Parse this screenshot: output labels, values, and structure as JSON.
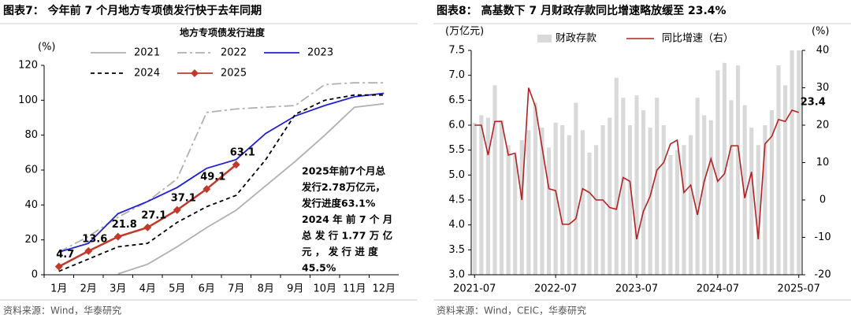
{
  "chart_data": [
    {
      "type": "line",
      "title": "图表7：  今年前 7 个月地方专项债发行快于去年同期",
      "subtitle": "地方专项债发行进度",
      "ylabel": "(%)",
      "source": "资料来源：Wind，华泰研究",
      "categories": [
        "1月",
        "2月",
        "3月",
        "4月",
        "5月",
        "6月",
        "7月",
        "8月",
        "9月",
        "10月",
        "11月",
        "12月"
      ],
      "ylim": [
        0,
        120
      ],
      "yticks": [
        0,
        20,
        40,
        60,
        80,
        100,
        120
      ],
      "series": [
        {
          "name": "2021",
          "color": "#b0b0b0",
          "style": "solid",
          "values": [
            null,
            null,
            0.5,
            6,
            16,
            27,
            37,
            51,
            65,
            80,
            96,
            98
          ]
        },
        {
          "name": "2022",
          "color": "#b0b0b0",
          "style": "dashdot",
          "values": [
            13,
            22,
            33,
            42,
            55,
            93,
            95,
            96,
            97,
            109,
            110,
            110
          ]
        },
        {
          "name": "2023",
          "color": "#1f1fd6",
          "style": "solid",
          "values": [
            13,
            18,
            35,
            42,
            50,
            61,
            66,
            81,
            91,
            97,
            102,
            104
          ]
        },
        {
          "name": "2024",
          "color": "#000000",
          "style": "dashed",
          "values": [
            2,
            9,
            16,
            18,
            30,
            39,
            45.5,
            66,
            92,
            100,
            103,
            103
          ]
        },
        {
          "name": "2025",
          "color": "#c0392b",
          "style": "solid",
          "marker": "diamond",
          "labels": true,
          "values": [
            4.7,
            13.6,
            21.8,
            27.1,
            37.1,
            49.1,
            63.1,
            null,
            null,
            null,
            null,
            null
          ]
        }
      ],
      "annotations": [
        {
          "color": "#c0392b",
          "lines": [
            "2025年前7个月总",
            "发行2.78万亿元，",
            "发行进度63.1%"
          ]
        },
        {
          "color": "#000000",
          "lines": [
            "2024 年 前 7 个 月",
            "总 发 行 1.77 万 亿",
            "元 ， 发 行 进 度",
            "45.5%"
          ]
        }
      ]
    },
    {
      "type": "combo",
      "title": "图表8：  高基数下 7 月财政存款同比增速略放缓至 23.4%",
      "ylabel": "(万亿元)",
      "y2label": "(%)",
      "source": "资料来源：Wind，CEIC，华泰研究",
      "categories": [
        "2021-07",
        null,
        null,
        null,
        null,
        null,
        null,
        null,
        null,
        null,
        null,
        null,
        "2022-07",
        null,
        null,
        null,
        null,
        null,
        null,
        null,
        null,
        null,
        null,
        null,
        "2023-07",
        null,
        null,
        null,
        null,
        null,
        null,
        null,
        null,
        null,
        null,
        null,
        "2024-07",
        null,
        null,
        null,
        null,
        null,
        null,
        null,
        null,
        null,
        null,
        null,
        "2025-07"
      ],
      "ylim": [
        3.0,
        7.5
      ],
      "yticks": [
        {
          "value": 3,
          "label": "3.0"
        },
        {
          "value": 3.5,
          "label": "3.5"
        },
        {
          "value": 4,
          "label": "4.0"
        },
        {
          "value": 4.5,
          "label": "4.5"
        },
        {
          "value": 5,
          "label": "5.0"
        },
        {
          "value": 5.5,
          "label": "5.5"
        },
        {
          "value": 6,
          "label": "6.0"
        },
        {
          "value": 6.5,
          "label": "6.5"
        },
        {
          "value": 7,
          "label": "7.0"
        },
        {
          "value": 7.5,
          "label": "7.5"
        }
      ],
      "y2lim": [
        -20,
        40
      ],
      "y2ticks": [
        -20,
        -10,
        0,
        10,
        20,
        30,
        40
      ],
      "series": [
        {
          "name": "财政存款",
          "type": "bar",
          "color": "#d9d9d9",
          "values": [
            6.05,
            6.2,
            6.15,
            6.8,
            6.1,
            5.6,
            5.4,
            5.7,
            5.9,
            6.45,
            5.95,
            5.55,
            6.05,
            6.0,
            5.8,
            6.45,
            5.9,
            5.45,
            5.6,
            6.0,
            6.15,
            6.95,
            6.55,
            6.0,
            6.6,
            6.3,
            5.95,
            6.55,
            6.0,
            5.4,
            5.5,
            5.6,
            5.8,
            6.55,
            6.2,
            6.1,
            7.1,
            7.25,
            6.5,
            7.2,
            6.4,
            5.95,
            5.6,
            6.0,
            6.3,
            7.2,
            6.8,
            7.5,
            7.5
          ]
        },
        {
          "name": "同比增速（右）",
          "type": "line",
          "axis": "y2",
          "color": "#b22222",
          "values": [
            20,
            20,
            12,
            21,
            21,
            12,
            12.5,
            0,
            30,
            25,
            14,
            3,
            2.5,
            -6.5,
            -6.5,
            -5,
            3,
            2,
            0,
            0,
            -2,
            -2.5,
            6,
            5,
            -10.5,
            -3,
            1,
            8,
            10,
            15,
            16,
            2,
            4,
            -4,
            5,
            11,
            5,
            7,
            14.5,
            14.5,
            0.5,
            7.5,
            -10.5,
            15,
            17,
            21.5,
            21,
            24,
            23.4
          ]
        }
      ]
    }
  ]
}
